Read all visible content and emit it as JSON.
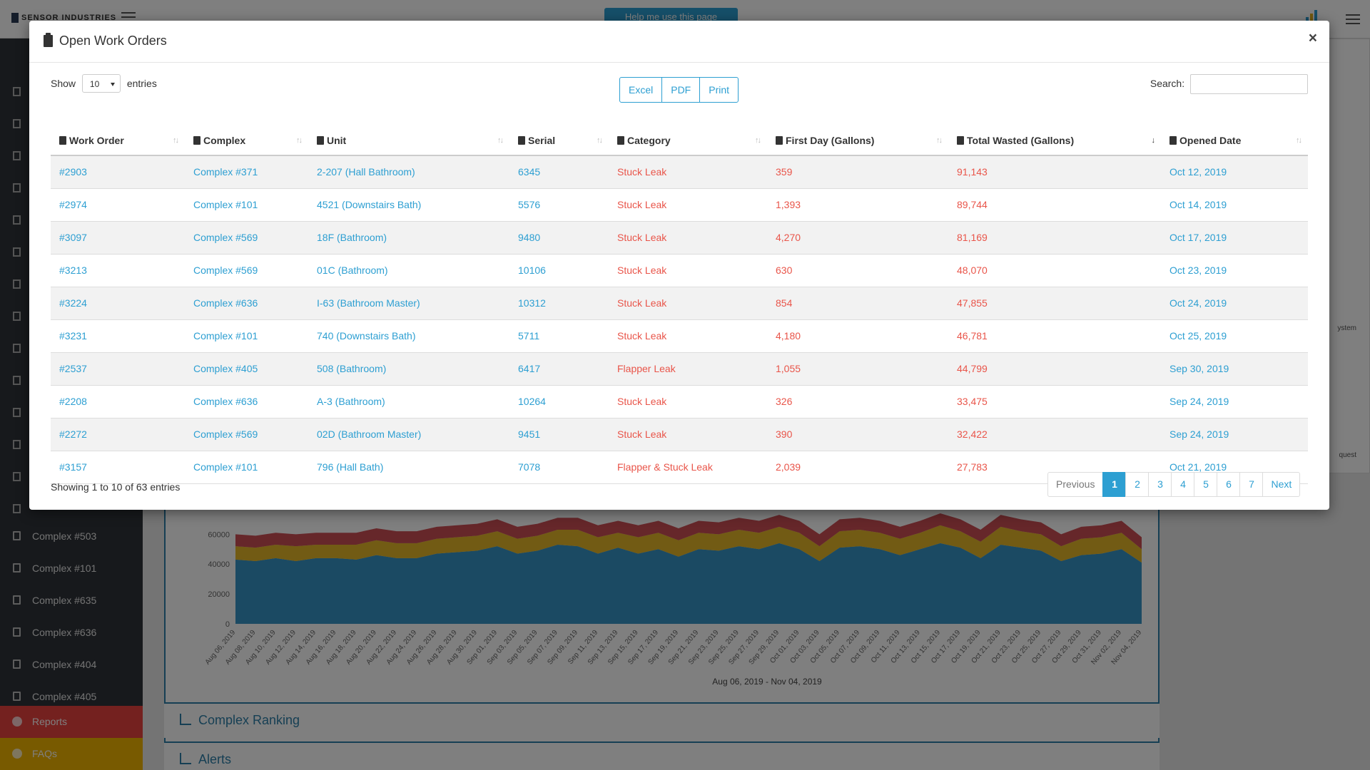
{
  "background": {
    "brand": "SENSOR INDUSTRIES",
    "help_button": "Help me use this page",
    "sidebar_items": [
      "Complex #503",
      "Complex #101",
      "Complex #635",
      "Complex #636",
      "Complex #404",
      "Complex #405"
    ],
    "reports_label": "Reports",
    "faqs_label": "FAQs",
    "right_text_1": "ystem",
    "right_text_2": "quest",
    "chart_xlabel": "Aug 06, 2019 - Nov 04, 2019",
    "complex_ranking_label": "Complex Ranking",
    "alerts_label": "Alerts",
    "colors": {
      "sidebar": "#2f3338",
      "reports": "#e9423f",
      "faqs": "#f1b400",
      "accent": "#2d9fd2"
    }
  },
  "chart_data": {
    "type": "area",
    "title": "",
    "xlabel": "Aug 06, 2019 - Nov 04, 2019",
    "ylabel": "",
    "ylim": [
      0,
      60000
    ],
    "yticks": [
      0,
      20000,
      40000,
      60000
    ],
    "x": [
      "Aug 06, 2019",
      "Aug 08, 2019",
      "Aug 10, 2019",
      "Aug 12, 2019",
      "Aug 14, 2019",
      "Aug 16, 2019",
      "Aug 18, 2019",
      "Aug 20, 2019",
      "Aug 22, 2019",
      "Aug 24, 2019",
      "Aug 26, 2019",
      "Aug 28, 2019",
      "Aug 30, 2019",
      "Sep 01, 2019",
      "Sep 03, 2019",
      "Sep 05, 2019",
      "Sep 07, 2019",
      "Sep 09, 2019",
      "Sep 11, 2019",
      "Sep 13, 2019",
      "Sep 15, 2019",
      "Sep 17, 2019",
      "Sep 19, 2019",
      "Sep 21, 2019",
      "Sep 23, 2019",
      "Sep 25, 2019",
      "Sep 27, 2019",
      "Sep 29, 2019",
      "Oct 01, 2019",
      "Oct 03, 2019",
      "Oct 05, 2019",
      "Oct 07, 2019",
      "Oct 09, 2019",
      "Oct 11, 2019",
      "Oct 13, 2019",
      "Oct 15, 2019",
      "Oct 17, 2019",
      "Oct 19, 2019",
      "Oct 21, 2019",
      "Oct 23, 2019",
      "Oct 25, 2019",
      "Oct 27, 2019",
      "Oct 29, 2019",
      "Oct 31, 2019",
      "Nov 02, 2019",
      "Nov 04, 2019"
    ],
    "series": [
      {
        "color": "#2b8fc4",
        "values": [
          43000,
          42000,
          44000,
          42000,
          44000,
          44000,
          43000,
          46000,
          44000,
          44000,
          47000,
          48000,
          49000,
          52000,
          47000,
          49000,
          53000,
          52000,
          47000,
          51000,
          47000,
          50000,
          45000,
          50000,
          49000,
          52000,
          50000,
          54000,
          50000,
          42000,
          51000,
          52000,
          50000,
          46000,
          50000,
          54000,
          51000,
          44000,
          53000,
          51000,
          49000,
          42000,
          46000,
          47000,
          50000,
          41000
        ]
      },
      {
        "color": "#e3b21c",
        "values": [
          9000,
          9000,
          9000,
          10000,
          9000,
          9000,
          10000,
          10000,
          10000,
          10000,
          10000,
          10000,
          10000,
          10000,
          10000,
          10000,
          10000,
          11000,
          11000,
          10000,
          11000,
          11000,
          11000,
          11000,
          11000,
          11000,
          11000,
          11000,
          11000,
          10000,
          11000,
          11000,
          11000,
          11000,
          11000,
          12000,
          11000,
          11000,
          12000,
          11000,
          11000,
          10000,
          11000,
          11000,
          11000,
          9000
        ]
      },
      {
        "color": "#c9444c",
        "values": [
          8000,
          8000,
          8000,
          8000,
          8000,
          8000,
          8000,
          8000,
          8000,
          8000,
          8000,
          8000,
          8000,
          8000,
          8000,
          8000,
          8000,
          8000,
          8000,
          8000,
          8000,
          8000,
          8000,
          8000,
          8000,
          8000,
          8000,
          8000,
          8000,
          8000,
          8000,
          8000,
          8000,
          8000,
          8000,
          8000,
          8000,
          8000,
          8000,
          8000,
          8000,
          8000,
          8000,
          8000,
          8000,
          8000
        ]
      }
    ]
  },
  "modal": {
    "title": "Open Work Orders",
    "close": "×",
    "length": {
      "show": "Show",
      "value": "10",
      "entries": "entries"
    },
    "buttons": [
      "Excel",
      "PDF",
      "Print"
    ],
    "search_label": "Search:",
    "search_value": "",
    "columns": [
      {
        "label": "Work Order",
        "icon": "clipboard-icon"
      },
      {
        "label": "Complex",
        "icon": "building-icon"
      },
      {
        "label": "Unit",
        "icon": "toilet-icon"
      },
      {
        "label": "Serial",
        "icon": "gear-icon"
      },
      {
        "label": "Category",
        "icon": "list-icon"
      },
      {
        "label": "First Day (Gallons)",
        "icon": "droplet-icon"
      },
      {
        "label": "Total Wasted (Gallons)",
        "icon": "fill-drip-icon"
      },
      {
        "label": "Opened Date",
        "icon": "calendar-icon"
      }
    ],
    "sorted_column": "Total Wasted (Gallons)",
    "rows": [
      [
        "#2903",
        "Complex #371",
        "2-207 (Hall Bathroom)",
        "6345",
        "Stuck Leak",
        "359",
        "91,143",
        "Oct 12, 2019"
      ],
      [
        "#2974",
        "Complex #101",
        "4521 (Downstairs Bath)",
        "5576",
        "Stuck Leak",
        "1,393",
        "89,744",
        "Oct 14, 2019"
      ],
      [
        "#3097",
        "Complex #569",
        "18F (Bathroom)",
        "9480",
        "Stuck Leak",
        "4,270",
        "81,169",
        "Oct 17, 2019"
      ],
      [
        "#3213",
        "Complex #569",
        "01C (Bathroom)",
        "10106",
        "Stuck Leak",
        "630",
        "48,070",
        "Oct 23, 2019"
      ],
      [
        "#3224",
        "Complex #636",
        "I-63 (Bathroom Master)",
        "10312",
        "Stuck Leak",
        "854",
        "47,855",
        "Oct 24, 2019"
      ],
      [
        "#3231",
        "Complex #101",
        "740 (Downstairs Bath)",
        "5711",
        "Stuck Leak",
        "4,180",
        "46,781",
        "Oct 25, 2019"
      ],
      [
        "#2537",
        "Complex #405",
        "508 (Bathroom)",
        "6417",
        "Flapper Leak",
        "1,055",
        "44,799",
        "Sep 30, 2019"
      ],
      [
        "#2208",
        "Complex #636",
        "A-3 (Bathroom)",
        "10264",
        "Stuck Leak",
        "326",
        "33,475",
        "Sep 24, 2019"
      ],
      [
        "#2272",
        "Complex #569",
        "02D (Bathroom Master)",
        "9451",
        "Stuck Leak",
        "390",
        "32,422",
        "Sep 24, 2019"
      ],
      [
        "#3157",
        "Complex #101",
        "796 (Hall Bath)",
        "7078",
        "Flapper & Stuck Leak",
        "2,039",
        "27,783",
        "Oct 21, 2019"
      ]
    ],
    "info": "Showing 1 to 10 of 63 entries",
    "pagination": {
      "previous": "Previous",
      "pages": [
        "1",
        "2",
        "3",
        "4",
        "5",
        "6",
        "7"
      ],
      "active": "1",
      "next": "Next"
    }
  }
}
